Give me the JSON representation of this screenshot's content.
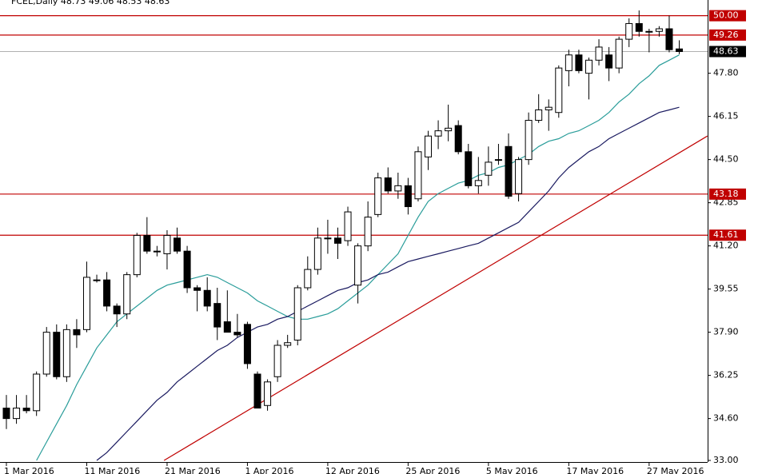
{
  "chart_data": {
    "type": "candlestick",
    "title": "FCEL,Daily  48.73 49.06 48.53 48.63",
    "categories": [
      "1 Mar 2016",
      null,
      null,
      null,
      null,
      null,
      null,
      null,
      "11 Mar 2016",
      null,
      null,
      null,
      null,
      null,
      null,
      null,
      "21 Mar 2016",
      null,
      null,
      null,
      null,
      null,
      null,
      null,
      "1 Apr 2016",
      null,
      null,
      null,
      null,
      null,
      null,
      null,
      "12 Apr 2016",
      null,
      null,
      null,
      null,
      null,
      null,
      null,
      "25 Apr 2016",
      null,
      null,
      null,
      null,
      null,
      null,
      null,
      "5 May 2016",
      null,
      null,
      null,
      null,
      null,
      null,
      null,
      "17 May 2016",
      null,
      null,
      null,
      null,
      null,
      null,
      null,
      "27 May 2016",
      null,
      null,
      null
    ],
    "open": [
      35.0,
      34.6,
      35.0,
      34.9,
      36.3,
      37.9,
      36.2,
      38.0,
      38.0,
      39.9,
      39.9,
      38.9,
      38.6,
      40.1,
      41.6,
      41.0,
      40.9,
      41.5,
      41.0,
      39.6,
      39.5,
      39.0,
      38.3,
      37.9,
      38.2,
      36.3,
      35.1,
      36.2,
      37.4,
      37.6,
      39.6,
      40.3,
      41.5,
      41.5,
      41.4,
      39.7,
      41.2,
      42.4,
      43.8,
      43.3,
      43.5,
      43.0,
      44.6,
      45.4,
      45.6,
      45.8,
      44.8,
      43.5,
      43.9,
      44.5,
      45.0,
      43.2,
      44.5,
      46.0,
      46.4,
      46.3,
      47.9,
      48.5,
      47.8,
      48.3,
      48.5,
      48.0,
      49.1,
      49.7,
      49.4,
      49.4,
      49.5,
      48.73
    ],
    "high": [
      35.5,
      35.5,
      35.5,
      36.4,
      38.1,
      38.2,
      38.2,
      38.4,
      40.6,
      40.1,
      40.2,
      39.0,
      40.2,
      41.7,
      42.3,
      41.2,
      41.8,
      41.9,
      41.2,
      39.7,
      40.0,
      39.6,
      39.5,
      38.6,
      38.3,
      36.4,
      36.1,
      37.6,
      37.8,
      39.7,
      40.8,
      41.9,
      42.2,
      41.9,
      42.7,
      41.3,
      42.9,
      44.0,
      44.2,
      44.0,
      43.8,
      45.0,
      45.6,
      46.0,
      46.6,
      46.0,
      45.1,
      44.6,
      45.0,
      45.1,
      45.5,
      44.6,
      46.3,
      47.0,
      46.8,
      48.1,
      48.7,
      48.7,
      48.4,
      49.1,
      48.8,
      49.2,
      49.9,
      50.2,
      49.5,
      49.6,
      50.0,
      49.06
    ],
    "low": [
      34.2,
      34.4,
      34.8,
      34.7,
      36.2,
      36.1,
      36.0,
      37.3,
      37.9,
      39.8,
      38.7,
      38.1,
      38.4,
      40.0,
      40.9,
      40.8,
      40.3,
      40.9,
      39.4,
      38.7,
      38.7,
      37.6,
      37.9,
      37.7,
      36.5,
      35.0,
      34.9,
      36.0,
      37.3,
      37.4,
      39.5,
      40.1,
      40.9,
      40.7,
      41.2,
      39.0,
      41.0,
      42.3,
      43.2,
      43.0,
      42.4,
      42.9,
      44.1,
      44.9,
      45.2,
      44.7,
      43.4,
      43.2,
      43.5,
      44.3,
      43.0,
      42.9,
      44.3,
      45.9,
      45.6,
      46.1,
      47.3,
      47.8,
      46.8,
      48.1,
      47.5,
      47.8,
      48.8,
      49.2,
      48.6,
      49.2,
      48.6,
      48.53
    ],
    "close": [
      34.6,
      35.0,
      34.9,
      36.3,
      37.9,
      36.2,
      38.0,
      37.8,
      40.0,
      39.9,
      38.9,
      38.6,
      40.1,
      41.6,
      41.0,
      41.0,
      41.6,
      41.0,
      39.6,
      39.5,
      38.9,
      38.1,
      37.9,
      37.8,
      36.7,
      35.0,
      36.0,
      37.4,
      37.5,
      39.6,
      40.3,
      41.5,
      41.5,
      41.3,
      42.5,
      41.2,
      42.3,
      43.8,
      43.3,
      43.5,
      42.7,
      44.8,
      45.4,
      45.6,
      45.7,
      44.8,
      43.5,
      43.7,
      44.4,
      44.5,
      43.1,
      44.5,
      46.0,
      46.4,
      46.5,
      48.0,
      48.5,
      47.9,
      48.3,
      48.8,
      48.0,
      49.1,
      49.7,
      49.4,
      49.4,
      49.5,
      48.7,
      48.63
    ],
    "up_color": "#ffffff",
    "down_color": "#000000",
    "moving_averages": [
      {
        "color": "#2a9d9a",
        "values": [
          null,
          null,
          null,
          33.0,
          33.7,
          34.4,
          35.1,
          35.9,
          36.6,
          37.3,
          37.8,
          38.3,
          38.6,
          38.9,
          39.2,
          39.5,
          39.7,
          39.8,
          39.9,
          40.0,
          40.1,
          40.0,
          39.8,
          39.6,
          39.4,
          39.1,
          38.9,
          38.7,
          38.5,
          38.4,
          38.4,
          38.5,
          38.6,
          38.8,
          39.1,
          39.4,
          39.7,
          40.1,
          40.5,
          40.9,
          41.6,
          42.3,
          42.9,
          43.2,
          43.4,
          43.6,
          43.7,
          43.9,
          44.0,
          44.2,
          44.3,
          44.5,
          44.7,
          45.0,
          45.2,
          45.3,
          45.5,
          45.6,
          45.8,
          46.0,
          46.3,
          46.7,
          47.0,
          47.4,
          47.7,
          48.1,
          48.3,
          48.5
        ]
      },
      {
        "color": "#1a1a60",
        "values": [
          null,
          null,
          null,
          null,
          null,
          null,
          null,
          null,
          null,
          33.0,
          33.3,
          33.7,
          34.1,
          34.5,
          34.9,
          35.3,
          35.6,
          36.0,
          36.3,
          36.6,
          36.9,
          37.2,
          37.4,
          37.7,
          37.9,
          38.1,
          38.2,
          38.4,
          38.5,
          38.7,
          38.9,
          39.1,
          39.3,
          39.5,
          39.6,
          39.8,
          39.9,
          40.1,
          40.2,
          40.4,
          40.6,
          40.7,
          40.8,
          40.9,
          41.0,
          41.1,
          41.2,
          41.3,
          41.5,
          41.7,
          41.9,
          42.1,
          42.5,
          42.9,
          43.3,
          43.8,
          44.2,
          44.5,
          44.8,
          45.0,
          45.3,
          45.5,
          45.7,
          45.9,
          46.1,
          46.3,
          46.4,
          46.5
        ]
      }
    ],
    "trendline": {
      "color": "#c00000",
      "x": [
        15.7,
        69.8
      ],
      "values": [
        33.0,
        45.4
      ]
    },
    "levels": [
      {
        "value": 50.0,
        "label": "50.00"
      },
      {
        "value": 49.26,
        "label": "49.26"
      },
      {
        "value": 43.18,
        "label": "43.18"
      },
      {
        "value": 41.61,
        "label": "41.61"
      }
    ],
    "level_color": "#c00000",
    "last_price": {
      "value": 48.63,
      "label": "48.63"
    },
    "ylim": [
      33.0,
      50.6
    ],
    "yticks": [
      {
        "value": 33.0,
        "label": "33.00"
      },
      {
        "value": 34.6,
        "label": "34.60"
      },
      {
        "value": 36.25,
        "label": "36.25"
      },
      {
        "value": 37.9,
        "label": "37.90"
      },
      {
        "value": 39.55,
        "label": "39.55"
      },
      {
        "value": 41.2,
        "label": "41.20"
      },
      {
        "value": 42.85,
        "label": "42.85"
      },
      {
        "value": 44.5,
        "label": "44.50"
      },
      {
        "value": 46.15,
        "label": "46.15"
      },
      {
        "value": 47.8,
        "label": "47.80"
      }
    ]
  }
}
